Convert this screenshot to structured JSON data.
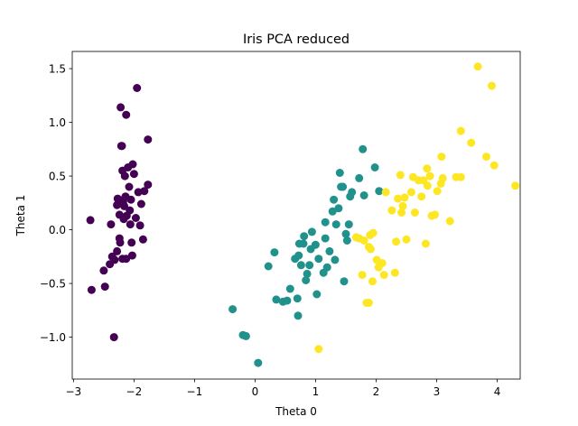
{
  "chart_data": {
    "type": "scatter",
    "title": "Iris PCA reduced",
    "xlabel": "Theta 0",
    "ylabel": "Theta 1",
    "xlim": [
      -3.02,
      4.38
    ],
    "ylim": [
      -1.39,
      1.66
    ],
    "grid": false,
    "legend": "none",
    "x_ticks": [
      -3,
      -2,
      -1,
      0,
      1,
      2,
      3,
      4
    ],
    "y_ticks": [
      -1.0,
      -0.5,
      0.0,
      0.5,
      1.0,
      1.5
    ],
    "x_tick_labels": [
      "−3",
      "−2",
      "−1",
      "0",
      "1",
      "2",
      "3",
      "4"
    ],
    "y_tick_labels": [
      "−1.0",
      "−0.5",
      "0.0",
      "0.5",
      "1.0",
      "1.5"
    ],
    "series": [
      {
        "color": "#440154",
        "points": [
          [
            -2.72,
            0.09
          ],
          [
            -2.7,
            -0.56
          ],
          [
            -2.5,
            -0.38
          ],
          [
            -2.48,
            -0.53
          ],
          [
            -2.4,
            -0.32
          ],
          [
            -2.38,
            0.05
          ],
          [
            -2.33,
            -1.0
          ],
          [
            -2.36,
            -0.25
          ],
          [
            -2.32,
            -0.28
          ],
          [
            -2.28,
            -0.2
          ],
          [
            -2.28,
            0.23
          ],
          [
            -2.27,
            0.29
          ],
          [
            -2.25,
            0.28
          ],
          [
            -2.24,
            0.14
          ],
          [
            -2.24,
            -0.08
          ],
          [
            -2.23,
            -0.12
          ],
          [
            -2.22,
            1.14
          ],
          [
            -2.21,
            0.78
          ],
          [
            -2.2,
            0.78
          ],
          [
            -2.19,
            -0.27
          ],
          [
            -2.19,
            0.55
          ],
          [
            -2.18,
            0.26
          ],
          [
            -2.17,
            0.1
          ],
          [
            -2.16,
            0.22
          ],
          [
            -2.15,
            0.5
          ],
          [
            -2.14,
            0.31
          ],
          [
            -2.13,
            -0.27
          ],
          [
            -2.13,
            1.07
          ],
          [
            -2.12,
            0.13
          ],
          [
            -2.1,
            0.58
          ],
          [
            -2.08,
            0.4
          ],
          [
            -2.07,
            0.18
          ],
          [
            -2.06,
            0.05
          ],
          [
            -2.05,
            0.28
          ],
          [
            -2.04,
            -0.12
          ],
          [
            -2.03,
            -0.24
          ],
          [
            -2.02,
            0.61
          ],
          [
            -2.0,
            0.52
          ],
          [
            -1.97,
            0.11
          ],
          [
            -1.95,
            1.32
          ],
          [
            -1.93,
            0.35
          ],
          [
            -1.9,
            0.04
          ],
          [
            -1.88,
            0.24
          ],
          [
            -1.85,
            -0.09
          ],
          [
            -1.83,
            0.36
          ],
          [
            -1.77,
            0.42
          ],
          [
            -1.77,
            0.84
          ]
        ]
      },
      {
        "color": "#21918c",
        "points": [
          [
            -0.37,
            -0.74
          ],
          [
            -0.2,
            -0.98
          ],
          [
            -0.15,
            -0.99
          ],
          [
            0.05,
            -1.24
          ],
          [
            0.22,
            -0.34
          ],
          [
            0.32,
            -0.21
          ],
          [
            0.35,
            -0.65
          ],
          [
            0.46,
            -0.67
          ],
          [
            0.53,
            -0.66
          ],
          [
            0.58,
            -0.55
          ],
          [
            0.66,
            -0.27
          ],
          [
            0.7,
            -0.64
          ],
          [
            0.71,
            -0.8
          ],
          [
            0.72,
            -0.24
          ],
          [
            0.73,
            -0.13
          ],
          [
            0.76,
            -0.33
          ],
          [
            0.8,
            -0.13
          ],
          [
            0.81,
            -0.06
          ],
          [
            0.84,
            -0.47
          ],
          [
            0.86,
            -0.41
          ],
          [
            0.9,
            -0.33
          ],
          [
            0.92,
            -0.18
          ],
          [
            0.94,
            -0.02
          ],
          [
            1.0,
            -0.14
          ],
          [
            1.02,
            -0.6
          ],
          [
            1.05,
            -0.27
          ],
          [
            1.13,
            -0.4
          ],
          [
            1.16,
            -0.08
          ],
          [
            1.16,
            0.07
          ],
          [
            1.19,
            -0.35
          ],
          [
            1.23,
            -0.2
          ],
          [
            1.28,
            0.17
          ],
          [
            1.3,
            0.28
          ],
          [
            1.32,
            -0.28
          ],
          [
            1.34,
            0.05
          ],
          [
            1.38,
            0.2
          ],
          [
            1.4,
            0.53
          ],
          [
            1.42,
            0.4
          ],
          [
            1.45,
            0.4
          ],
          [
            1.47,
            -0.48
          ],
          [
            1.5,
            -0.04
          ],
          [
            1.52,
            -0.1
          ],
          [
            1.55,
            0.05
          ],
          [
            1.57,
            0.31
          ],
          [
            1.6,
            0.35
          ],
          [
            1.72,
            0.48
          ],
          [
            1.78,
            0.75
          ],
          [
            1.8,
            0.32
          ],
          [
            1.98,
            0.58
          ],
          [
            2.05,
            0.36
          ]
        ]
      },
      {
        "color": "#fde725",
        "points": [
          [
            1.05,
            -1.11
          ],
          [
            1.67,
            -0.07
          ],
          [
            1.72,
            -0.08
          ],
          [
            1.77,
            -0.42
          ],
          [
            1.8,
            -0.1
          ],
          [
            1.84,
            -0.68
          ],
          [
            1.88,
            -0.16
          ],
          [
            1.88,
            -0.68
          ],
          [
            1.9,
            -0.05
          ],
          [
            1.91,
            -0.18
          ],
          [
            1.94,
            -0.48
          ],
          [
            1.95,
            -0.03
          ],
          [
            2.01,
            -0.28
          ],
          [
            2.04,
            -0.35
          ],
          [
            2.1,
            -0.31
          ],
          [
            2.13,
            -0.42
          ],
          [
            2.16,
            0.35
          ],
          [
            2.26,
            0.18
          ],
          [
            2.31,
            -0.4
          ],
          [
            2.33,
            -0.11
          ],
          [
            2.36,
            0.29
          ],
          [
            2.4,
            0.51
          ],
          [
            2.42,
            0.16
          ],
          [
            2.44,
            0.22
          ],
          [
            2.47,
            0.3
          ],
          [
            2.5,
            -0.09
          ],
          [
            2.58,
            0.35
          ],
          [
            2.61,
            0.49
          ],
          [
            2.64,
            0.16
          ],
          [
            2.7,
            0.46
          ],
          [
            2.75,
            0.31
          ],
          [
            2.78,
            0.46
          ],
          [
            2.82,
            -0.13
          ],
          [
            2.84,
            0.57
          ],
          [
            2.85,
            0.41
          ],
          [
            2.89,
            0.5
          ],
          [
            2.92,
            0.13
          ],
          [
            2.97,
            0.14
          ],
          [
            3.01,
            0.36
          ],
          [
            3.07,
            0.43
          ],
          [
            3.08,
            0.68
          ],
          [
            3.1,
            0.48
          ],
          [
            3.22,
            0.08
          ],
          [
            3.32,
            0.49
          ],
          [
            3.4,
            0.92
          ],
          [
            3.4,
            0.49
          ],
          [
            3.57,
            0.81
          ],
          [
            3.68,
            1.52
          ],
          [
            3.82,
            0.68
          ],
          [
            3.91,
            1.34
          ],
          [
            3.95,
            0.6
          ],
          [
            4.3,
            0.41
          ]
        ]
      }
    ]
  }
}
